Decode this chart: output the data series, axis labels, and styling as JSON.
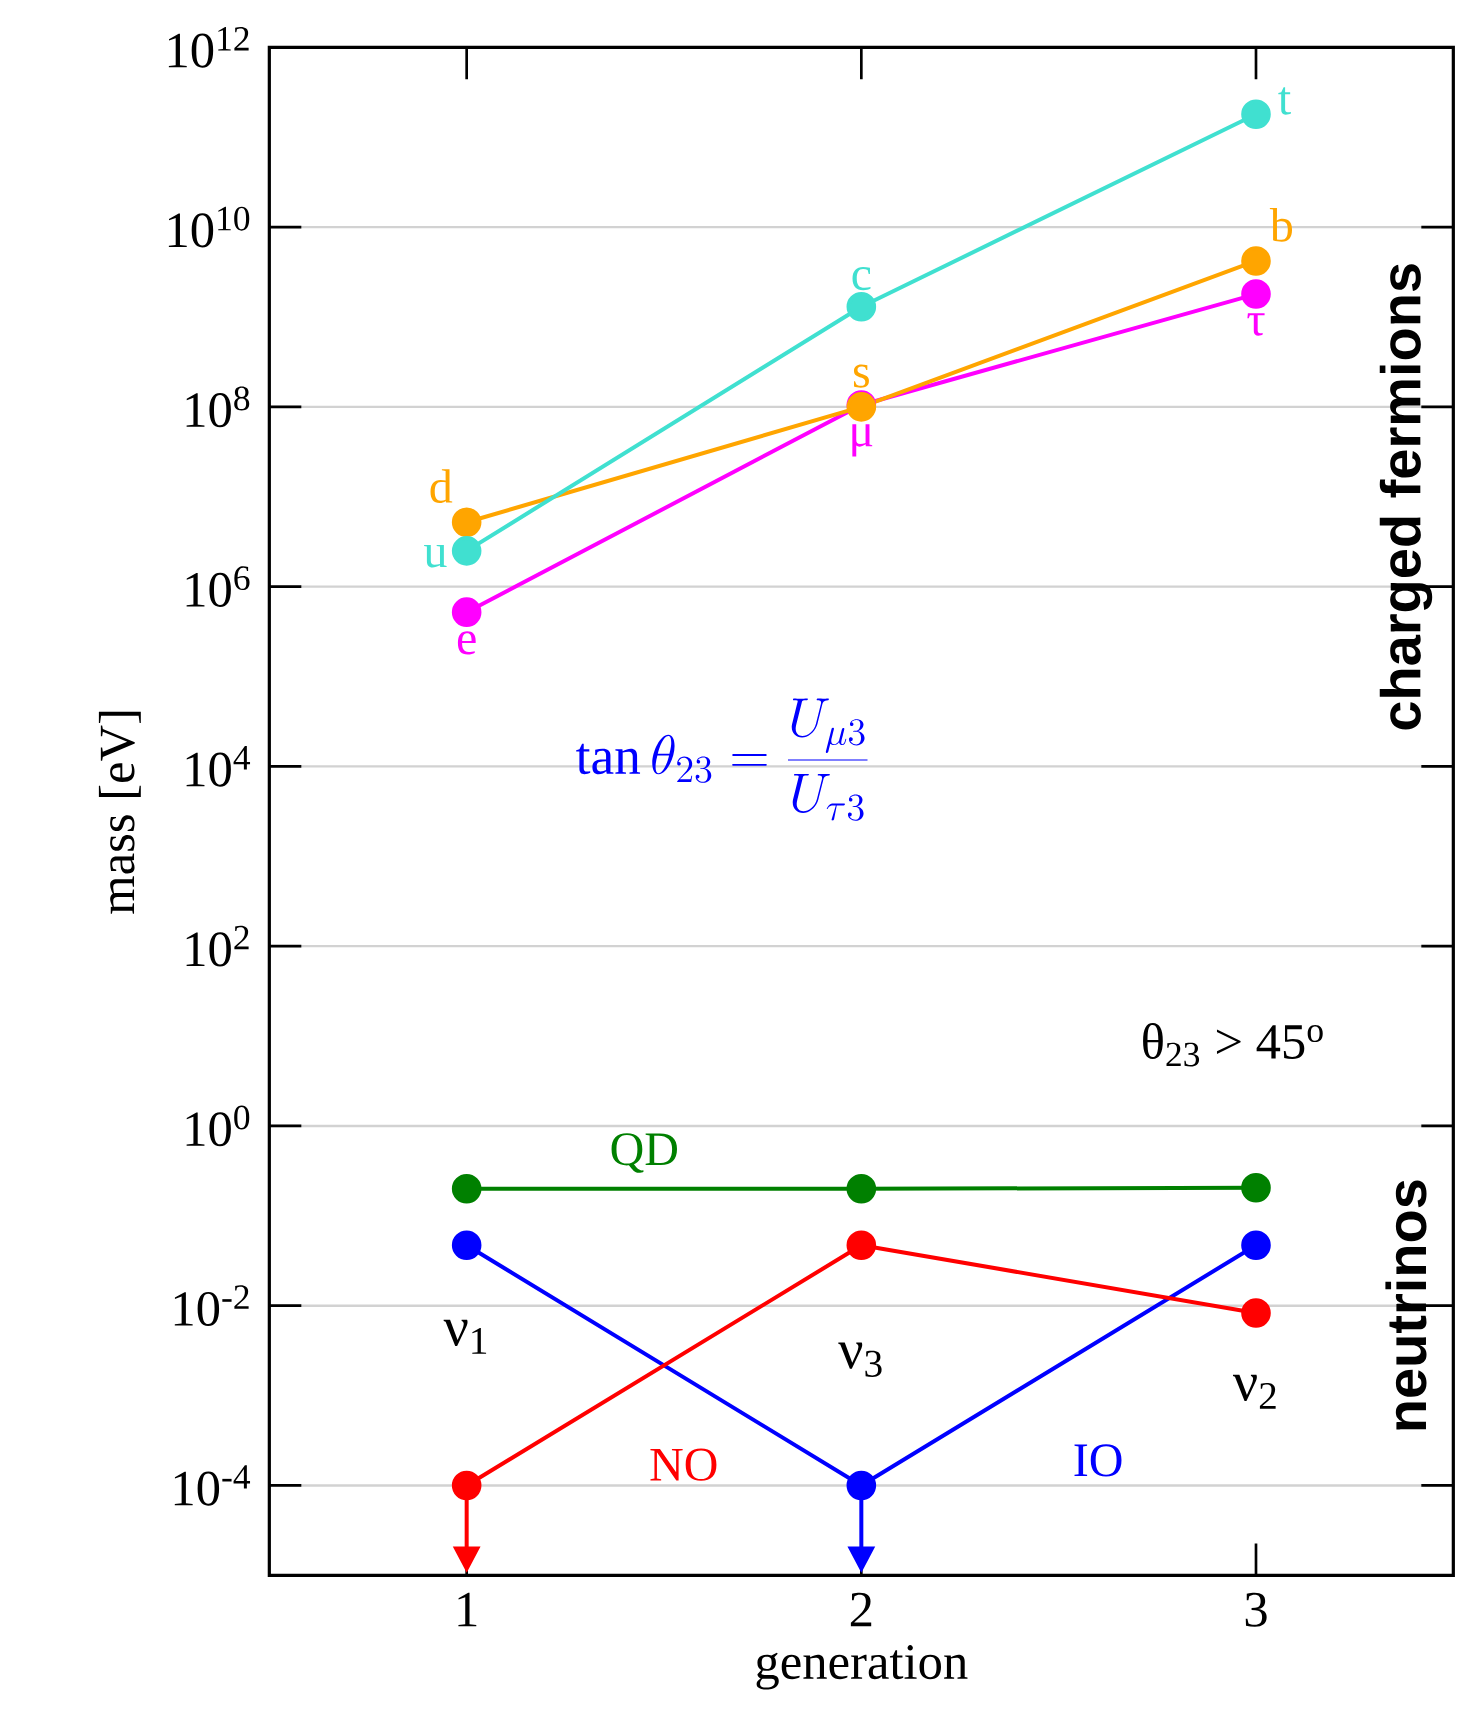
{
  "chart_data": {
    "type": "line",
    "xlabel": "generation",
    "ylabel": "mass [eV]",
    "x": [
      1,
      2,
      3
    ],
    "xlim": [
      0.5,
      3.5
    ],
    "xticks": [
      1,
      2,
      3
    ],
    "log": "y",
    "ylim": [
      1e-05,
      1000000000000.0
    ],
    "yticks": [
      {
        "value": 0.0001,
        "label": "10$^{-4}$"
      },
      {
        "value": 0.01,
        "label": "10$^{-2}$"
      },
      {
        "value": 1,
        "label": "10$^{0}$"
      },
      {
        "value": 100.0,
        "label": "10$^{2}$"
      },
      {
        "value": 10000.0,
        "label": "10$^{4}$"
      },
      {
        "value": 1000000.0,
        "label": "10$^{6}$"
      },
      {
        "value": 100000000.0,
        "label": "10$^{8}$"
      },
      {
        "value": 10000000000.0,
        "label": "10$^{10}$"
      },
      {
        "value": 1000000000000.0,
        "label": "10$^{12}$"
      }
    ],
    "grid": "y",
    "marker": "circle",
    "line_style": "solid",
    "series": [
      {
        "color": "#40e0d0",
        "values": [
          2500000.0,
          1300000000.0,
          180000000000.0
        ]
      },
      {
        "color": "#ffa500",
        "values": [
          5200000.0,
          100000000.0,
          4200000000.0
        ]
      },
      {
        "color": "#ff00ff",
        "values": [
          520000.0,
          105000000.0,
          1800000000.0
        ]
      },
      {
        "name": "QD",
        "color": "#008000",
        "values": [
          0.2,
          0.2,
          0.205
        ]
      },
      {
        "name": "NO",
        "color": "#ff0000",
        "values": [
          0.0001,
          0.047,
          0.0083
        ],
        "errors": [
          [
            2.1e-05,
            0.0001
          ],
          null,
          null
        ]
      },
      {
        "name": "IO",
        "color": "#0000ff",
        "values": [
          0.047,
          0.0001,
          0.047
        ],
        "errors": [
          null,
          [
            2.1e-05,
            0.0001
          ],
          null
        ]
      }
    ],
    "annotations": [
      {
        "text": "u",
        "x": 1,
        "y": 2500000.0
      },
      {
        "text": "c",
        "x": 2,
        "y": 1300000000.0
      },
      {
        "text": "t",
        "x": 3,
        "y": 180000000000.0
      },
      {
        "text": "d",
        "x": 1,
        "y": 5200000.0
      },
      {
        "text": "s",
        "x": 2,
        "y": 100000000.0
      },
      {
        "text": "b",
        "x": 3,
        "y": 4200000000.0
      },
      {
        "text": "e",
        "x": 1,
        "y": 520000.0
      },
      {
        "text": "μ",
        "x": 2,
        "y": 105000000.0
      },
      {
        "text": "τ",
        "x": 3,
        "y": 1800000000.0
      },
      "ν$_{1}$",
      "ν$_{3}$",
      "ν$_{2}$",
      "\\tan\\theta_{23} = \\frac{U_{\\mu3}}{U_{\\tau3}}",
      "θ$_{23}$ > 45$^{o}$",
      "charged fermions",
      "neutrinos"
    ]
  }
}
